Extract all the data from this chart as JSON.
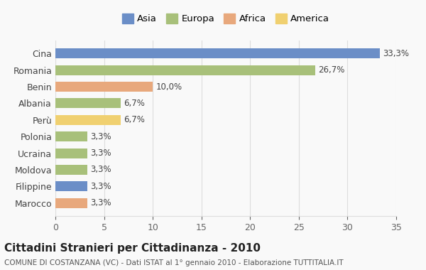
{
  "categories": [
    "Marocco",
    "Filippine",
    "Moldova",
    "Ucraina",
    "Polonia",
    "Perù",
    "Albania",
    "Benin",
    "Romania",
    "Cina"
  ],
  "values": [
    3.3,
    3.3,
    3.3,
    3.3,
    3.3,
    6.7,
    6.7,
    10.0,
    26.7,
    33.3
  ],
  "labels": [
    "3,3%",
    "3,3%",
    "3,3%",
    "3,3%",
    "3,3%",
    "6,7%",
    "6,7%",
    "10,0%",
    "26,7%",
    "33,3%"
  ],
  "colors": [
    "#E8A87C",
    "#6B8EC7",
    "#A8C07A",
    "#A8C07A",
    "#A8C07A",
    "#F0D070",
    "#A8C07A",
    "#E8A87C",
    "#A8C07A",
    "#6B8EC7"
  ],
  "continent": [
    "Africa",
    "Asia",
    "Europa",
    "Europa",
    "Europa",
    "America",
    "Europa",
    "Africa",
    "Europa",
    "Asia"
  ],
  "legend_labels": [
    "Asia",
    "Europa",
    "Africa",
    "America"
  ],
  "legend_colors": [
    "#6B8EC7",
    "#A8C07A",
    "#E8A87C",
    "#F0D070"
  ],
  "title": "Cittadini Stranieri per Cittadinanza - 2010",
  "subtitle": "COMUNE DI COSTANZANA (VC) - Dati ISTAT al 1° gennaio 2010 - Elaborazione TUTTITALIA.IT",
  "xlim": [
    0,
    35
  ],
  "xticks": [
    0,
    5,
    10,
    15,
    20,
    25,
    30,
    35
  ],
  "background_color": "#f9f9f9",
  "bar_height": 0.6,
  "grid_color": "#dddddd"
}
